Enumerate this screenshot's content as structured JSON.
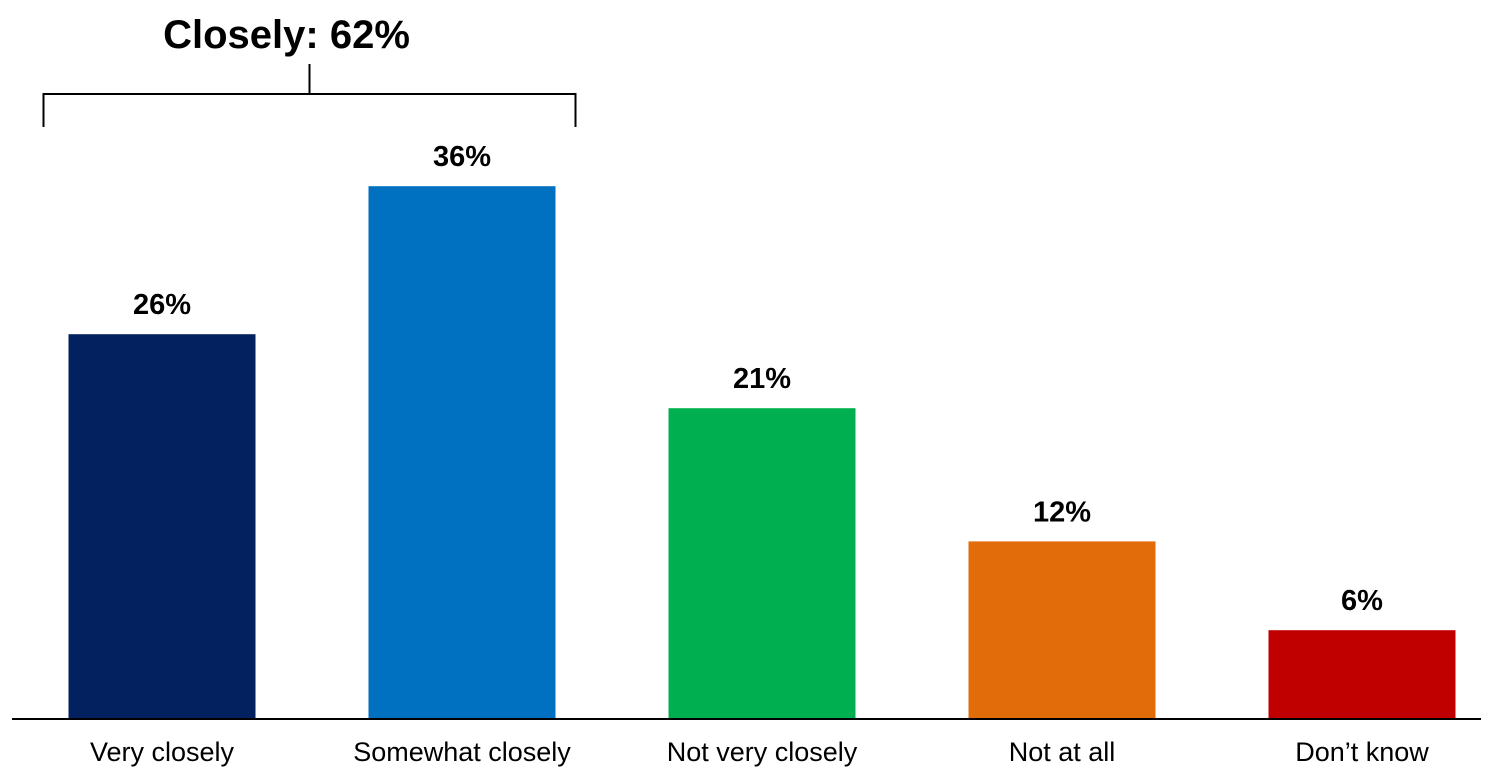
{
  "chart_data": {
    "type": "bar",
    "categories": [
      "Very closely",
      "Somewhat closely",
      "Not very closely",
      "Not at all",
      "Don’t know"
    ],
    "values": [
      26,
      36,
      21,
      12,
      6
    ],
    "value_labels": [
      "26%",
      "36%",
      "21%",
      "12%",
      "6%"
    ],
    "colors": [
      "#02215E",
      "#0070C0",
      "#00B050",
      "#E36C0A",
      "#C00000"
    ],
    "ylim": [
      0,
      40
    ],
    "grid": false,
    "bracket": {
      "label": "Closely: 62%",
      "spans_categories": [
        "Very closely",
        "Somewhat closely"
      ]
    }
  }
}
